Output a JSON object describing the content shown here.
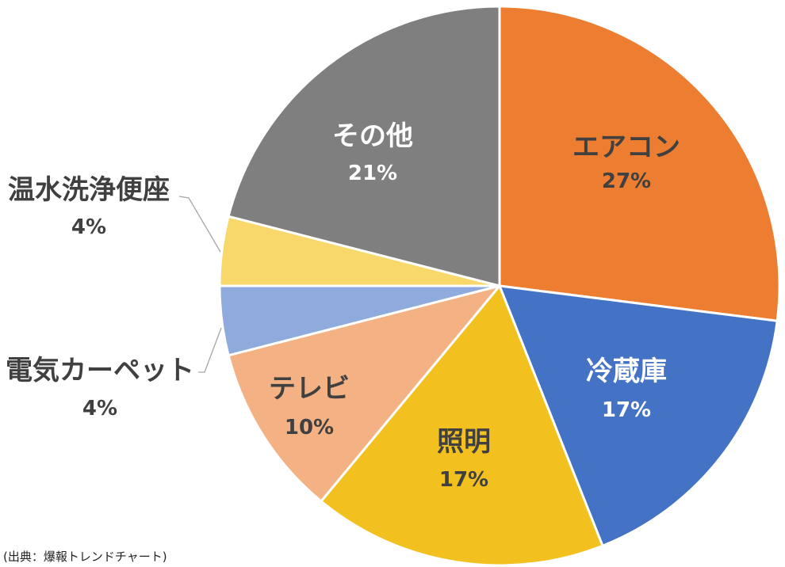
{
  "chart_data": {
    "type": "pie",
    "title": "",
    "categories": [
      "エアコン",
      "冷蔵庫",
      "照明",
      "テレビ",
      "電気カーペット",
      "温水洗浄便座",
      "その他"
    ],
    "values": [
      27,
      17,
      17,
      10,
      4,
      4,
      21
    ],
    "value_suffix": "%",
    "colors": [
      "#ED7D31",
      "#4472C4",
      "#F3C11F",
      "#F4B183",
      "#8FAADC",
      "#F8D86A",
      "#7F7F7F"
    ],
    "label_colors": [
      "#404040",
      "#FFFFFF",
      "#404040",
      "#404040",
      "#404040",
      "#404040",
      "#FFFFFF"
    ],
    "slice_border_color": "#FFFFFF",
    "leader_line_color": "#A6A6A6"
  },
  "source": "(出典：爆報トレンドチャート)"
}
